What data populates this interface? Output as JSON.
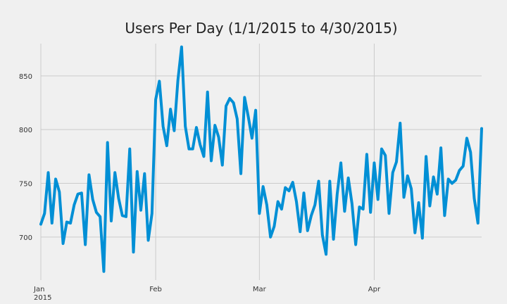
{
  "chart_data": {
    "type": "line",
    "title": "Users Per Day (1/1/2015 to 4/30/2015)",
    "xlabel": "",
    "ylabel": "",
    "ylim": [
      660,
      880
    ],
    "xlim": [
      "2015-01-01",
      "2015-04-30"
    ],
    "grid": true,
    "legend": "none",
    "y_ticks": [
      700,
      750,
      800,
      850
    ],
    "x_ticks": [
      {
        "date": "2015-01-01",
        "label": "Jan",
        "sublabel": "2015"
      },
      {
        "date": "2015-02-01",
        "label": "Feb",
        "sublabel": ""
      },
      {
        "date": "2015-03-01",
        "label": "Mar",
        "sublabel": ""
      },
      {
        "date": "2015-04-01",
        "label": "Apr",
        "sublabel": ""
      }
    ],
    "colors": {
      "line": "#008fd5",
      "background": "#f0f0f0",
      "grid": "#cbcbcb"
    },
    "series": [
      {
        "name": "",
        "x_start": "2015-01-01",
        "x_end": "2015-04-30",
        "frequency": "daily",
        "values": [
          712,
          722,
          760,
          713,
          754,
          742,
          694,
          714,
          713,
          730,
          740,
          741,
          693,
          758,
          735,
          723,
          719,
          668,
          788,
          715,
          760,
          736,
          720,
          719,
          782,
          686,
          761,
          725,
          759,
          697,
          722,
          828,
          845,
          803,
          785,
          819,
          799,
          846,
          877,
          803,
          782,
          782,
          802,
          786,
          775,
          835,
          771,
          804,
          793,
          767,
          822,
          829,
          825,
          810,
          759,
          830,
          812,
          792,
          818,
          722,
          747,
          730,
          700,
          710,
          733,
          726,
          746,
          743,
          751,
          733,
          705,
          741,
          706,
          720,
          730,
          752,
          702,
          684,
          752,
          698,
          740,
          769,
          724,
          755,
          731,
          693,
          728,
          726,
          777,
          723,
          769,
          735,
          782,
          776,
          722,
          760,
          770,
          806,
          737,
          757,
          745,
          704,
          732,
          699,
          775,
          729,
          756,
          740,
          783,
          720,
          754,
          750,
          753,
          762,
          766,
          792,
          779,
          736,
          713,
          801
        ]
      }
    ]
  }
}
